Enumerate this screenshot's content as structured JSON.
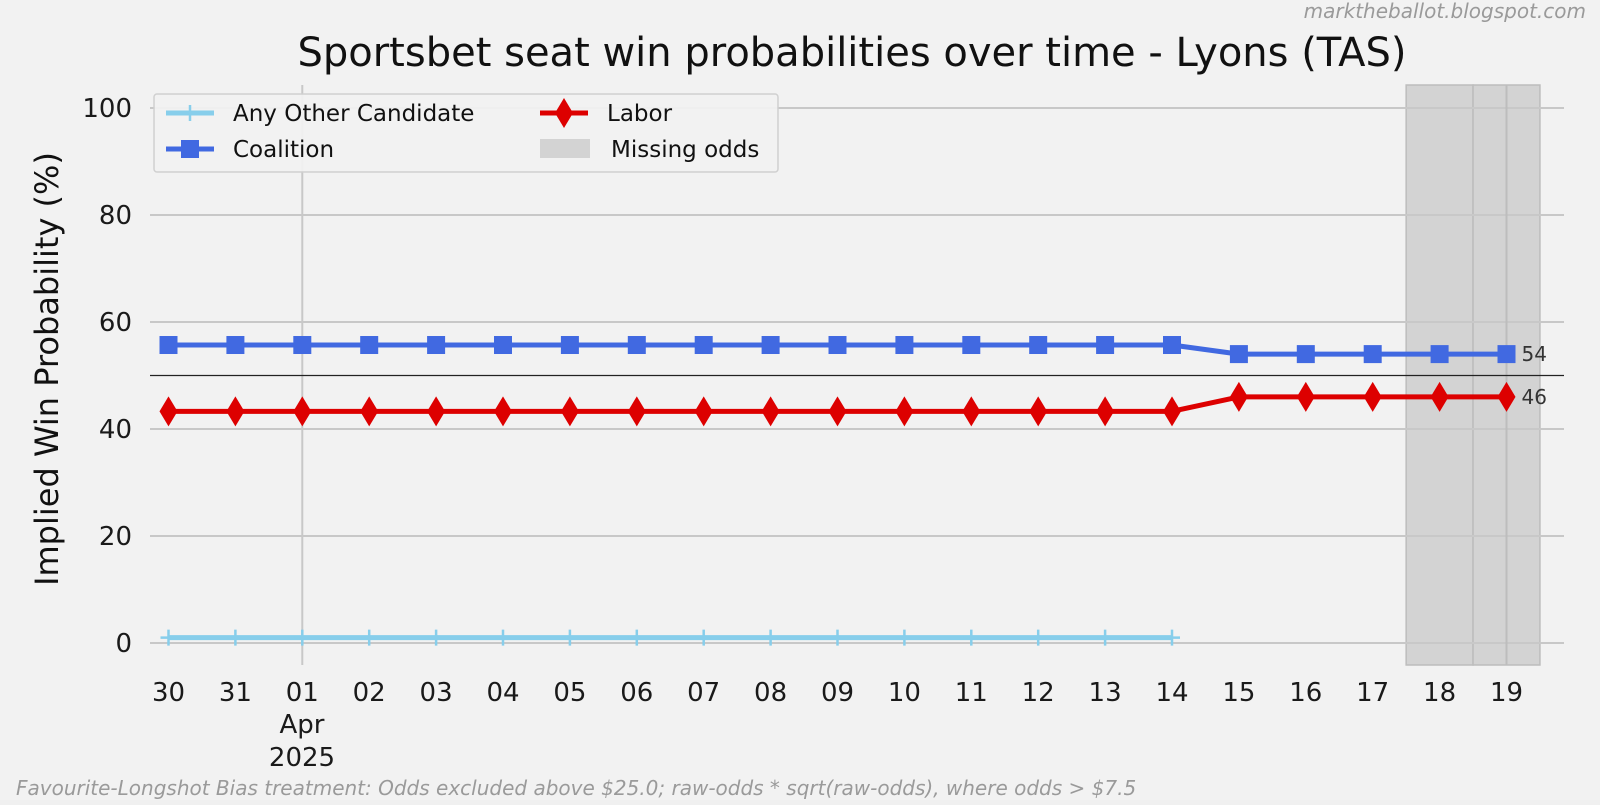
{
  "chart_data": {
    "type": "line",
    "title": "Sportsbet seat win probabilities over time - Lyons (TAS)",
    "xlabel": "",
    "ylabel": "Implied Win Probability (%)",
    "ylim": [
      0,
      100
    ],
    "yticks": [
      0,
      20,
      40,
      60,
      80,
      100
    ],
    "x": [
      "2025-03-30",
      "2025-03-31",
      "2025-04-01",
      "2025-04-02",
      "2025-04-03",
      "2025-04-04",
      "2025-04-05",
      "2025-04-06",
      "2025-04-07",
      "2025-04-08",
      "2025-04-09",
      "2025-04-10",
      "2025-04-11",
      "2025-04-12",
      "2025-04-13",
      "2025-04-14",
      "2025-04-15",
      "2025-04-16",
      "2025-04-17",
      "2025-04-18",
      "2025-04-19"
    ],
    "xtick_labels": [
      "30",
      "31",
      "01",
      "02",
      "03",
      "04",
      "05",
      "06",
      "07",
      "08",
      "09",
      "10",
      "11",
      "12",
      "13",
      "14",
      "15",
      "16",
      "17",
      "18",
      "19"
    ],
    "xtick_month_label": "Apr",
    "xtick_year_label": "2025",
    "series": [
      {
        "name": "Any Other Candidate",
        "color": "#87ceeb",
        "marker": "plus",
        "values": [
          1,
          1,
          1,
          1,
          1,
          1,
          1,
          1,
          1,
          1,
          1,
          1,
          1,
          1,
          1,
          1,
          null,
          null,
          null,
          null,
          null
        ]
      },
      {
        "name": "Coalition",
        "color": "#4169e1",
        "marker": "square",
        "values": [
          55.7,
          55.7,
          55.7,
          55.7,
          55.7,
          55.7,
          55.7,
          55.7,
          55.7,
          55.7,
          55.7,
          55.7,
          55.7,
          55.7,
          55.7,
          55.7,
          54,
          54,
          54,
          54,
          54
        ],
        "end_label": "54"
      },
      {
        "name": "Labor",
        "color": "#dd0000",
        "marker": "diamond",
        "values": [
          43.3,
          43.3,
          43.3,
          43.3,
          43.3,
          43.3,
          43.3,
          43.3,
          43.3,
          43.3,
          43.3,
          43.3,
          43.3,
          43.3,
          43.3,
          43.3,
          46,
          46,
          46,
          46,
          46
        ],
        "end_label": "46"
      }
    ],
    "missing_odds": {
      "label": "Missing odds",
      "ranges": [
        [
          "2025-04-17T12:00",
          "2025-04-18T12:00"
        ],
        [
          "2025-04-18T12:00",
          "2025-04-19T12:00"
        ]
      ]
    },
    "reference_line": 50,
    "grid": true,
    "legend_position": "top-left",
    "watermark": "marktheballot.blogspot.com",
    "footnote": "Favourite-Longshot Bias treatment: Odds excluded above $25.0; raw-odds * sqrt(raw-odds), where odds > $7.5"
  }
}
